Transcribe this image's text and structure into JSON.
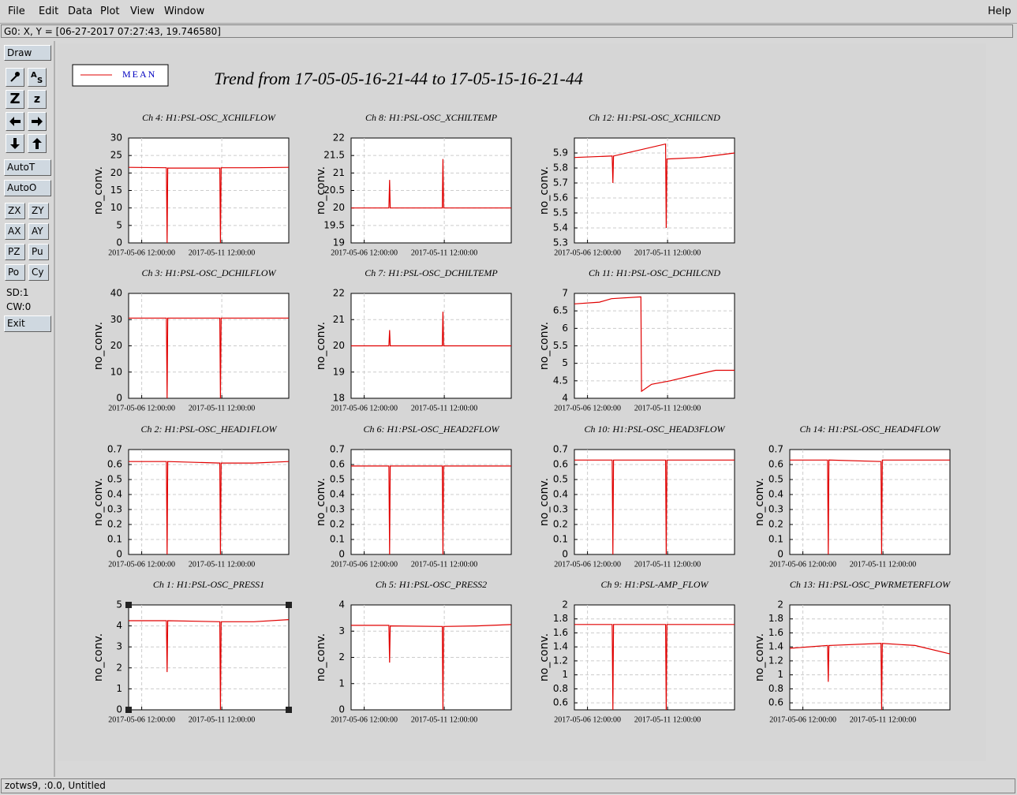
{
  "menu": [
    "File",
    "Edit",
    "Data",
    "Plot",
    "View",
    "Window"
  ],
  "help": "Help",
  "status": "G0: X, Y = [06-27-2017 07:27:43, 19.746580]",
  "toolbar": {
    "draw": "Draw",
    "zoom_big": "Z",
    "zoom_small": "z",
    "buttons": [
      "AutoT",
      "AutoO"
    ],
    "pairs": [
      [
        "ZX",
        "ZY"
      ],
      [
        "AX",
        "AY"
      ],
      [
        "PZ",
        "Pu"
      ],
      [
        "Po",
        "Cy"
      ]
    ],
    "info": [
      "SD:1",
      "CW:0"
    ],
    "exit": "Exit"
  },
  "footer": "zotws9, :0.0, Untitled",
  "title": "Trend from 17-05-05-16-21-44 to 17-05-15-16-21-44",
  "legend": {
    "name": "MEAN",
    "color": "#e00000"
  },
  "chart_data": [
    {
      "type": "line",
      "title": "Ch 4: H1:PSL-OSC_XCHILFLOW",
      "ylabel": "no_conv.",
      "color": "#e00000",
      "x": [
        "2017-05-05 16:21:44",
        "2017-05-08 01:00:00",
        "2017-05-08 02:00:00",
        "2017-05-08 03:00:00",
        "2017-05-11 09:00:00",
        "2017-05-11 10:00:00",
        "2017-05-11 11:00:00",
        "2017-05-13 12:00:00",
        "2017-05-15 16:21:44"
      ],
      "values": [
        21.6,
        21.5,
        0,
        21.4,
        21.4,
        0,
        21.5,
        21.5,
        21.6
      ],
      "xlim": [
        "2017-05-05 16:21:44",
        "2017-05-15 16:21:44"
      ],
      "xticks": [
        "2017-05-06 12:00:00",
        "2017-05-11 12:00:00"
      ],
      "ylim": [
        0,
        30
      ],
      "yticks": [
        0,
        5,
        10,
        15,
        20,
        25,
        30
      ],
      "grid": true
    },
    {
      "type": "line",
      "title": "Ch 8: H1:PSL-OSC_XCHILTEMP",
      "ylabel": "no_conv.",
      "color": "#e00000",
      "x": [
        "2017-05-05 16:21:44",
        "2017-05-08 01:00:00",
        "2017-05-08 02:00:00",
        "2017-05-08 03:00:00",
        "2017-05-11 09:00:00",
        "2017-05-11 10:00:00",
        "2017-05-11 11:00:00",
        "2017-05-13 12:00:00",
        "2017-05-15 16:21:44"
      ],
      "values": [
        20,
        20,
        20.8,
        20,
        20,
        21.4,
        20,
        20,
        20
      ],
      "xlim": [
        "2017-05-05 16:21:44",
        "2017-05-15 16:21:44"
      ],
      "xticks": [
        "2017-05-06 12:00:00",
        "2017-05-11 12:00:00"
      ],
      "ylim": [
        19,
        22
      ],
      "yticks": [
        19,
        19.5,
        20,
        20.5,
        21,
        21.5,
        22
      ],
      "grid": true
    },
    {
      "type": "line",
      "title": "Ch 12: H1:PSL-OSC_XCHILCND",
      "ylabel": "no_conv.",
      "color": "#e00000",
      "x": [
        "2017-05-05 16:21:44",
        "2017-05-08 01:00:00",
        "2017-05-08 02:00:00",
        "2017-05-08 03:00:00",
        "2017-05-11 09:00:00",
        "2017-05-11 10:00:00",
        "2017-05-11 11:00:00",
        "2017-05-13 12:00:00",
        "2017-05-15 16:21:44"
      ],
      "values": [
        5.87,
        5.88,
        5.7,
        5.88,
        5.96,
        5.4,
        5.86,
        5.87,
        5.9
      ],
      "xlim": [
        "2017-05-05 16:21:44",
        "2017-05-15 16:21:44"
      ],
      "xticks": [
        "2017-05-06 12:00:00",
        "2017-05-11 12:00:00"
      ],
      "ylim": [
        5.3,
        6
      ],
      "yticks": [
        5.3,
        5.4,
        5.5,
        5.6,
        5.7,
        5.8,
        5.9
      ],
      "grid": true
    },
    {
      "type": "line",
      "title": "Ch 3: H1:PSL-OSC_DCHILFLOW",
      "ylabel": "no_conv.",
      "color": "#e00000",
      "x": [
        "2017-05-05 16:21:44",
        "2017-05-08 01:00:00",
        "2017-05-08 02:00:00",
        "2017-05-08 03:00:00",
        "2017-05-11 09:00:00",
        "2017-05-11 10:00:00",
        "2017-05-11 11:00:00",
        "2017-05-13 12:00:00",
        "2017-05-15 16:21:44"
      ],
      "values": [
        30.6,
        30.6,
        0,
        30.6,
        30.6,
        0,
        30.6,
        30.6,
        30.6
      ],
      "xlim": [
        "2017-05-05 16:21:44",
        "2017-05-15 16:21:44"
      ],
      "xticks": [
        "2017-05-06 12:00:00",
        "2017-05-11 12:00:00"
      ],
      "ylim": [
        0,
        40
      ],
      "yticks": [
        0,
        10,
        20,
        30,
        40
      ],
      "grid": true
    },
    {
      "type": "line",
      "title": "Ch 7: H1:PSL-OSC_DCHILTEMP",
      "ylabel": "no_conv.",
      "color": "#e00000",
      "x": [
        "2017-05-05 16:21:44",
        "2017-05-08 01:00:00",
        "2017-05-08 02:00:00",
        "2017-05-08 03:00:00",
        "2017-05-11 09:00:00",
        "2017-05-11 10:00:00",
        "2017-05-11 11:00:00",
        "2017-05-13 12:00:00",
        "2017-05-15 16:21:44"
      ],
      "values": [
        20,
        20,
        20.6,
        20,
        20,
        21.3,
        20,
        20,
        20
      ],
      "xlim": [
        "2017-05-05 16:21:44",
        "2017-05-15 16:21:44"
      ],
      "xticks": [
        "2017-05-06 12:00:00",
        "2017-05-11 12:00:00"
      ],
      "ylim": [
        18,
        22
      ],
      "yticks": [
        18,
        19,
        20,
        21,
        22
      ],
      "grid": true
    },
    {
      "type": "line",
      "title": "Ch 11: H1:PSL-OSC_DCHILCND",
      "ylabel": "no_conv.",
      "color": "#e00000",
      "x": [
        "2017-05-05 16:21:44",
        "2017-05-07 06:00:00",
        "2017-05-08 00:00:00",
        "2017-05-09 20:00:00",
        "2017-05-09 21:00:00",
        "2017-05-10 12:00:00",
        "2017-05-11 16:00:00",
        "2017-05-13 12:00:00",
        "2017-05-14 12:00:00",
        "2017-05-15 16:21:44"
      ],
      "values": [
        6.7,
        6.75,
        6.85,
        6.9,
        4.2,
        4.4,
        4.5,
        4.7,
        4.8,
        4.8
      ],
      "xlim": [
        "2017-05-05 16:21:44",
        "2017-05-15 16:21:44"
      ],
      "xticks": [
        "2017-05-06 12:00:00",
        "2017-05-11 12:00:00"
      ],
      "ylim": [
        4,
        7
      ],
      "yticks": [
        4,
        4.5,
        5,
        5.5,
        6,
        6.5,
        7
      ],
      "grid": true
    },
    {
      "type": "line",
      "title": "Ch 2: H1:PSL-OSC_HEAD1FLOW",
      "ylabel": "no_conv.",
      "color": "#e00000",
      "x": [
        "2017-05-05 16:21:44",
        "2017-05-08 01:00:00",
        "2017-05-08 02:00:00",
        "2017-05-08 03:00:00",
        "2017-05-11 09:00:00",
        "2017-05-11 10:00:00",
        "2017-05-11 11:00:00",
        "2017-05-13 12:00:00",
        "2017-05-15 16:21:44"
      ],
      "values": [
        0.62,
        0.62,
        0,
        0.62,
        0.61,
        0,
        0.61,
        0.61,
        0.62
      ],
      "xlim": [
        "2017-05-05 16:21:44",
        "2017-05-15 16:21:44"
      ],
      "xticks": [
        "2017-05-06 12:00:00",
        "2017-05-11 12:00:00"
      ],
      "ylim": [
        0,
        0.7
      ],
      "yticks": [
        0,
        0.1,
        0.2,
        0.3,
        0.4,
        0.5,
        0.6,
        0.7
      ],
      "grid": true
    },
    {
      "type": "line",
      "title": "Ch 6: H1:PSL-OSC_HEAD2FLOW",
      "ylabel": "no_conv.",
      "color": "#e00000",
      "x": [
        "2017-05-05 16:21:44",
        "2017-05-08 01:00:00",
        "2017-05-08 02:00:00",
        "2017-05-08 03:00:00",
        "2017-05-11 09:00:00",
        "2017-05-11 10:00:00",
        "2017-05-11 11:00:00",
        "2017-05-13 12:00:00",
        "2017-05-15 16:21:44"
      ],
      "values": [
        0.59,
        0.59,
        0,
        0.59,
        0.59,
        0,
        0.59,
        0.59,
        0.59
      ],
      "xlim": [
        "2017-05-05 16:21:44",
        "2017-05-15 16:21:44"
      ],
      "xticks": [
        "2017-05-06 12:00:00",
        "2017-05-11 12:00:00"
      ],
      "ylim": [
        0,
        0.7
      ],
      "yticks": [
        0,
        0.1,
        0.2,
        0.3,
        0.4,
        0.5,
        0.6,
        0.7
      ],
      "grid": true
    },
    {
      "type": "line",
      "title": "Ch 10: H1:PSL-OSC_HEAD3FLOW",
      "ylabel": "no_conv.",
      "color": "#e00000",
      "x": [
        "2017-05-05 16:21:44",
        "2017-05-08 01:00:00",
        "2017-05-08 02:00:00",
        "2017-05-08 03:00:00",
        "2017-05-11 09:00:00",
        "2017-05-11 10:00:00",
        "2017-05-11 11:00:00",
        "2017-05-13 12:00:00",
        "2017-05-15 16:21:44"
      ],
      "values": [
        0.63,
        0.63,
        0,
        0.63,
        0.63,
        0,
        0.63,
        0.63,
        0.63
      ],
      "xlim": [
        "2017-05-05 16:21:44",
        "2017-05-15 16:21:44"
      ],
      "xticks": [
        "2017-05-06 12:00:00",
        "2017-05-11 12:00:00"
      ],
      "ylim": [
        0,
        0.7
      ],
      "yticks": [
        0,
        0.1,
        0.2,
        0.3,
        0.4,
        0.5,
        0.6,
        0.7
      ],
      "grid": true
    },
    {
      "type": "line",
      "title": "Ch 14: H1:PSL-OSC_HEAD4FLOW",
      "ylabel": "no_conv.",
      "color": "#e00000",
      "x": [
        "2017-05-05 16:21:44",
        "2017-05-08 01:00:00",
        "2017-05-08 02:00:00",
        "2017-05-08 03:00:00",
        "2017-05-11 09:00:00",
        "2017-05-11 10:00:00",
        "2017-05-11 11:00:00",
        "2017-05-13 12:00:00",
        "2017-05-15 16:21:44"
      ],
      "values": [
        0.63,
        0.63,
        0,
        0.63,
        0.62,
        0,
        0.63,
        0.63,
        0.63
      ],
      "xlim": [
        "2017-05-05 16:21:44",
        "2017-05-15 16:21:44"
      ],
      "xticks": [
        "2017-05-06 12:00:00",
        "2017-05-11 12:00:00"
      ],
      "ylim": [
        0,
        0.7
      ],
      "yticks": [
        0,
        0.1,
        0.2,
        0.3,
        0.4,
        0.5,
        0.6,
        0.7
      ],
      "grid": true
    },
    {
      "type": "line",
      "title": "Ch 1: H1:PSL-OSC_PRESS1",
      "ylabel": "no_conv.",
      "color": "#e00000",
      "selected": true,
      "x": [
        "2017-05-05 16:21:44",
        "2017-05-08 01:00:00",
        "2017-05-08 02:00:00",
        "2017-05-08 03:00:00",
        "2017-05-11 09:00:00",
        "2017-05-11 10:00:00",
        "2017-05-11 11:00:00",
        "2017-05-13 12:00:00",
        "2017-05-15 16:21:44"
      ],
      "values": [
        4.25,
        4.25,
        1.8,
        4.25,
        4.2,
        0,
        4.2,
        4.2,
        4.3
      ],
      "xlim": [
        "2017-05-05 16:21:44",
        "2017-05-15 16:21:44"
      ],
      "xticks": [
        "2017-05-06 12:00:00",
        "2017-05-11 12:00:00"
      ],
      "ylim": [
        0,
        5
      ],
      "yticks": [
        0,
        1,
        2,
        3,
        4,
        5
      ],
      "grid": true
    },
    {
      "type": "line",
      "title": "Ch 5: H1:PSL-OSC_PRESS2",
      "ylabel": "no_conv.",
      "color": "#e00000",
      "x": [
        "2017-05-05 16:21:44",
        "2017-05-08 01:00:00",
        "2017-05-08 02:00:00",
        "2017-05-08 03:00:00",
        "2017-05-11 09:00:00",
        "2017-05-11 10:00:00",
        "2017-05-11 11:00:00",
        "2017-05-13 12:00:00",
        "2017-05-15 16:21:44"
      ],
      "values": [
        3.22,
        3.22,
        1.8,
        3.2,
        3.18,
        0,
        3.18,
        3.2,
        3.25
      ],
      "xlim": [
        "2017-05-05 16:21:44",
        "2017-05-15 16:21:44"
      ],
      "xticks": [
        "2017-05-06 12:00:00",
        "2017-05-11 12:00:00"
      ],
      "ylim": [
        0,
        4
      ],
      "yticks": [
        0,
        1,
        2,
        3,
        4
      ],
      "grid": true
    },
    {
      "type": "line",
      "title": "Ch 9: H1:PSL-AMP_FLOW",
      "ylabel": "no_conv.",
      "color": "#e00000",
      "x": [
        "2017-05-05 16:21:44",
        "2017-05-08 01:00:00",
        "2017-05-08 02:00:00",
        "2017-05-08 03:00:00",
        "2017-05-11 09:00:00",
        "2017-05-11 10:00:00",
        "2017-05-11 11:00:00",
        "2017-05-13 12:00:00",
        "2017-05-15 16:21:44"
      ],
      "values": [
        1.72,
        1.72,
        0.5,
        1.72,
        1.72,
        0.5,
        1.72,
        1.72,
        1.72
      ],
      "xlim": [
        "2017-05-05 16:21:44",
        "2017-05-15 16:21:44"
      ],
      "xticks": [
        "2017-05-06 12:00:00",
        "2017-05-11 12:00:00"
      ],
      "ylim": [
        0.5,
        2
      ],
      "yticks": [
        0.6,
        0.8,
        1,
        1.2,
        1.4,
        1.6,
        1.8,
        2
      ],
      "grid": true
    },
    {
      "type": "line",
      "title": "Ch 13: H1:PSL-OSC_PWRMETERFLOW",
      "ylabel": "no_conv.",
      "color": "#e00000",
      "x": [
        "2017-05-05 16:21:44",
        "2017-05-08 01:00:00",
        "2017-05-08 02:00:00",
        "2017-05-08 03:00:00",
        "2017-05-11 09:00:00",
        "2017-05-11 10:00:00",
        "2017-05-11 11:00:00",
        "2017-05-13 12:00:00",
        "2017-05-15 16:21:44"
      ],
      "values": [
        1.38,
        1.42,
        0.9,
        1.42,
        1.45,
        0.5,
        1.45,
        1.42,
        1.3
      ],
      "xlim": [
        "2017-05-05 16:21:44",
        "2017-05-15 16:21:44"
      ],
      "xticks": [
        "2017-05-06 12:00:00",
        "2017-05-11 12:00:00"
      ],
      "ylim": [
        0.5,
        2
      ],
      "yticks": [
        0.6,
        0.8,
        1,
        1.2,
        1.4,
        1.6,
        1.8,
        2
      ],
      "grid": true
    }
  ]
}
